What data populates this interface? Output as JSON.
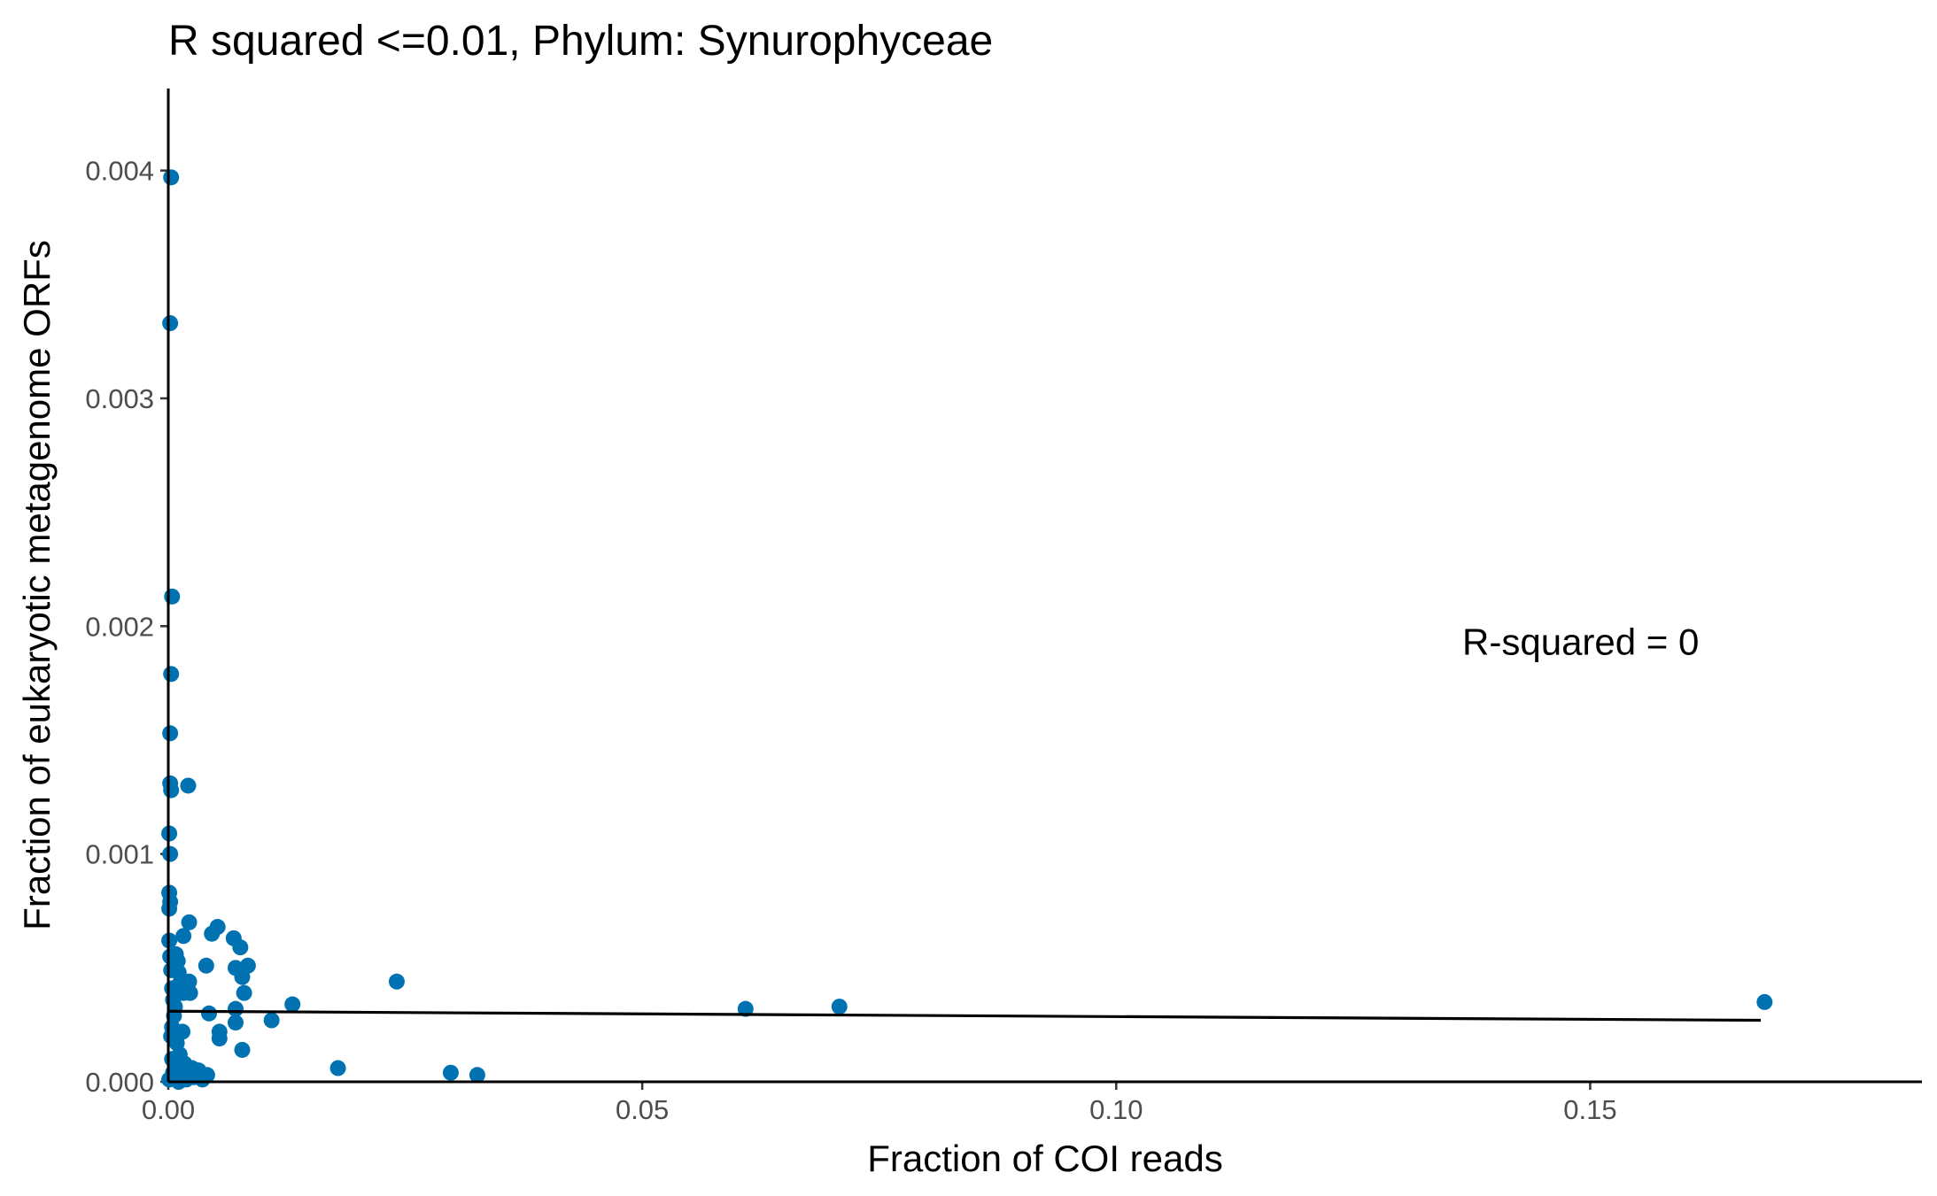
{
  "chart_data": {
    "type": "scatter",
    "title": "R squared <=0.01, Phylum:  Synurophyceae",
    "xlabel": "Fraction of COI reads",
    "ylabel": "Fraction of eukaryotic metagenome ORFs",
    "xlim": [
      0,
      0.185
    ],
    "ylim": [
      0,
      0.00436
    ],
    "x_ticks": [
      {
        "value": 0,
        "label": "0.00"
      },
      {
        "value": 0.05,
        "label": "0.05"
      },
      {
        "value": 0.1,
        "label": "0.10"
      },
      {
        "value": 0.15,
        "label": "0.15"
      }
    ],
    "y_ticks": [
      {
        "value": 0,
        "label": "0.000"
      },
      {
        "value": 0.001,
        "label": "0.001"
      },
      {
        "value": 0.002,
        "label": "0.002"
      },
      {
        "value": 0.003,
        "label": "0.003"
      },
      {
        "value": 0.004,
        "label": "0.004"
      }
    ],
    "annotation": {
      "text": "R-squared =  0",
      "x": 0.149,
      "y": 0.00193
    },
    "fit_line": {
      "x": [
        0,
        0.168
      ],
      "y": [
        0.00031,
        0.00027
      ]
    },
    "series": [
      {
        "color": "#0072B2",
        "points": [
          [
            0.0003,
            0.00397
          ],
          [
            0.0002,
            0.00333
          ],
          [
            0.0004,
            0.00213
          ],
          [
            0.0003,
            0.00179
          ],
          [
            0.0002,
            0.00153
          ],
          [
            0.0002,
            0.00131
          ],
          [
            0.0003,
            0.00128
          ],
          [
            0.0021,
            0.0013
          ],
          [
            0.0001,
            0.00109
          ],
          [
            0.0002,
            0.001
          ],
          [
            0.0001,
            0.00083
          ],
          [
            0.0002,
            0.00079
          ],
          [
            0.0001,
            0.00076
          ],
          [
            0.0022,
            0.0007
          ],
          [
            0.0052,
            0.00068
          ],
          [
            0.0046,
            0.00065
          ],
          [
            0.0016,
            0.00064
          ],
          [
            0.0069,
            0.00063
          ],
          [
            0.0001,
            0.00062
          ],
          [
            0.0076,
            0.00059
          ],
          [
            0.0008,
            0.00056
          ],
          [
            0.0002,
            0.00055
          ],
          [
            0.001,
            0.00053
          ],
          [
            0.004,
            0.00051
          ],
          [
            0.0071,
            0.0005
          ],
          [
            0.0084,
            0.00051
          ],
          [
            0.0003,
            0.00049
          ],
          [
            0.0011,
            0.00048
          ],
          [
            0.0078,
            0.00046
          ],
          [
            0.0022,
            0.00044
          ],
          [
            0.0241,
            0.00044
          ],
          [
            0.0012,
            0.00043
          ],
          [
            0.0004,
            0.00041
          ],
          [
            0.0023,
            0.00039
          ],
          [
            0.0016,
            0.00039
          ],
          [
            0.008,
            0.00039
          ],
          [
            0.0005,
            0.00036
          ],
          [
            0.0131,
            0.00034
          ],
          [
            0.1684,
            0.00035
          ],
          [
            0.0007,
            0.00033
          ],
          [
            0.0708,
            0.00033
          ],
          [
            0.0609,
            0.00032
          ],
          [
            0.0071,
            0.00032
          ],
          [
            0.0043,
            0.0003
          ],
          [
            0.0006,
            0.00029
          ],
          [
            0.0109,
            0.00027
          ],
          [
            0.0071,
            0.00026
          ],
          [
            0.0004,
            0.00024
          ],
          [
            0.0015,
            0.00022
          ],
          [
            0.0054,
            0.00022
          ],
          [
            0.0003,
            0.0002
          ],
          [
            0.0054,
            0.00019
          ],
          [
            0.0009,
            0.00017
          ],
          [
            0.0078,
            0.00014
          ],
          [
            0.0012,
            0.00012
          ],
          [
            0.0004,
            0.0001
          ],
          [
            0.0017,
            8e-05
          ],
          [
            0.0009,
            7e-05
          ],
          [
            0.0025,
            6e-05
          ],
          [
            0.0179,
            6e-05
          ],
          [
            0.0032,
            5e-05
          ],
          [
            0.0005,
            4e-05
          ],
          [
            0.0298,
            4e-05
          ],
          [
            0.0014,
            3e-05
          ],
          [
            0.0041,
            3e-05
          ],
          [
            0.0326,
            3e-05
          ],
          [
            0.0027,
            2e-05
          ],
          [
            0.0006,
            2e-05
          ],
          [
            0.0019,
            1e-05
          ],
          [
            0.0036,
            1e-05
          ],
          [
            0.0001,
            1e-05
          ],
          [
            0.0011,
            0.0
          ]
        ]
      }
    ]
  }
}
